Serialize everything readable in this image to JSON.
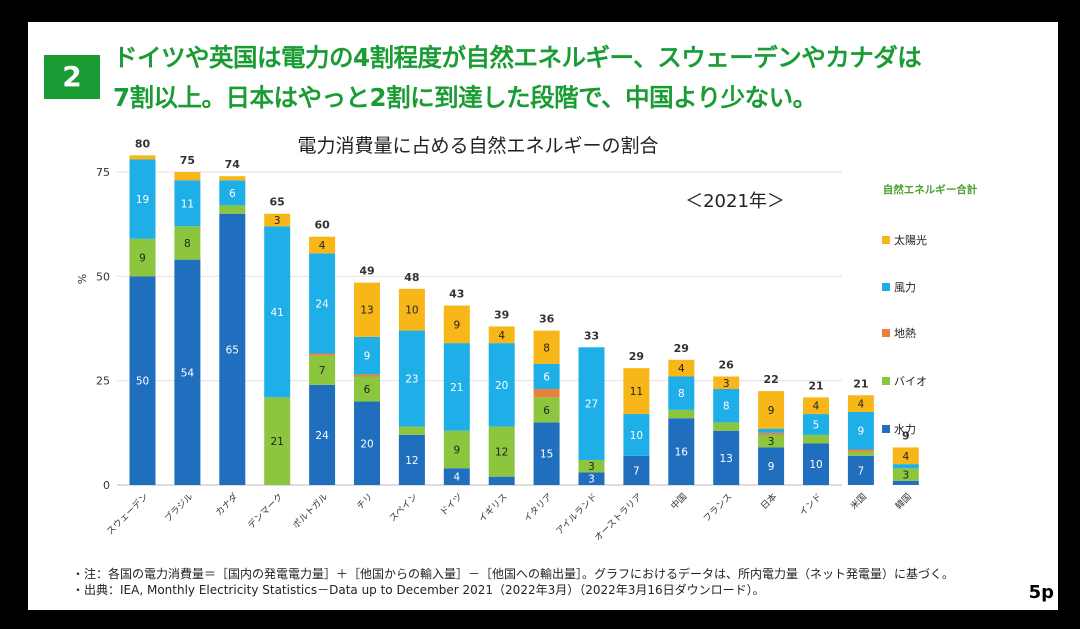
{
  "badge": "2",
  "headline": [
    "ドイツや英国は電力の4割程度が自然エネルギー、スウェーデンやカナダは",
    "7割以上。日本はやっと2割に到達した段階で、中国より少ない。"
  ],
  "year_label": "＜2021年＞",
  "notes": [
    "・注：各国の電力消費量＝［国内の発電電力量］＋［他国からの輸入量］－［他国への輸出量］。グラフにおけるデータは、所内電力量（ネット発電量）に基づく。",
    "・出典：IEA, Monthly Electricity Statistics－Data up to December 2021（2022年3月）（2022年3月16日ダウンロード）。"
  ],
  "page_number": "5p",
  "chart_data": {
    "type": "bar",
    "stacked": true,
    "title": "電力消費量に占める自然エネルギーの割合",
    "ylabel": "%",
    "ylim": [
      0,
      80
    ],
    "yticks": [
      0,
      25,
      50,
      75
    ],
    "grid": true,
    "legend_title": "自然エネルギー合計",
    "categories": [
      "スウェーデン",
      "ブラジル",
      "カナダ",
      "デンマーク",
      "ポルトガル",
      "チリ",
      "スペイン",
      "ドイツ",
      "イギリス",
      "イタリア",
      "アイルランド",
      "オーストラリア",
      "中国",
      "フランス",
      "日本",
      "インド",
      "米国",
      "韓国"
    ],
    "totals": [
      80,
      75,
      74,
      65,
      60,
      49,
      48,
      43,
      39,
      36,
      33,
      29,
      29,
      26,
      22,
      21,
      21,
      9
    ],
    "series": [
      {
        "name": "水力",
        "color": "#1f6fbe",
        "values": [
          50,
          54,
          65,
          0,
          24,
          20,
          12,
          4,
          2,
          15,
          3,
          7,
          16,
          13,
          9,
          10,
          7,
          1
        ],
        "labels": [
          "50",
          "54",
          "65",
          "",
          "24",
          "20",
          "12",
          "4",
          "",
          "15",
          "3",
          "7",
          "16",
          "13",
          "9",
          "10",
          "7",
          ""
        ]
      },
      {
        "name": "バイオ",
        "color": "#8cc63f",
        "values": [
          9,
          8,
          2,
          21,
          7,
          6,
          2,
          9,
          12,
          6,
          3,
          0,
          2,
          2,
          3,
          2,
          1,
          3
        ],
        "labels": [
          "9",
          "8",
          "",
          "21",
          "7",
          "6",
          "",
          "9",
          "12",
          "6",
          "3",
          "",
          "",
          "",
          "3",
          "",
          "",
          "3"
        ]
      },
      {
        "name": "地熱",
        "color": "#e8823a",
        "values": [
          0,
          0,
          0,
          0,
          0.5,
          0.5,
          0,
          0,
          0,
          2,
          0,
          0,
          0,
          0,
          0.5,
          0,
          0.5,
          0
        ],
        "labels": [
          "",
          "",
          "",
          "",
          "",
          "",
          "",
          "",
          "",
          "",
          "",
          "",
          "",
          "",
          "",
          "",
          "",
          ""
        ]
      },
      {
        "name": "風力",
        "color": "#1eaee8",
        "values": [
          19,
          11,
          6,
          41,
          24,
          9,
          23,
          21,
          20,
          6,
          27,
          10,
          8,
          8,
          1,
          5,
          9,
          1
        ],
        "labels": [
          "19",
          "11",
          "6",
          "41",
          "24",
          "9",
          "23",
          "21",
          "20",
          "6",
          "27",
          "10",
          "8",
          "8",
          "",
          "5",
          "9",
          ""
        ]
      },
      {
        "name": "太陽光",
        "color": "#f7b719",
        "values": [
          1,
          2,
          1,
          3,
          4,
          13,
          10,
          9,
          4,
          8,
          0,
          11,
          4,
          3,
          9,
          4,
          4,
          4
        ],
        "labels": [
          "",
          "",
          "",
          "3",
          "4",
          "13",
          "10",
          "9",
          "4",
          "8",
          "",
          "11",
          "4",
          "3",
          "9",
          "4",
          "4",
          "4"
        ]
      }
    ],
    "legend_order": [
      "太陽光",
      "風力",
      "地熱",
      "バイオ",
      "水力"
    ]
  }
}
